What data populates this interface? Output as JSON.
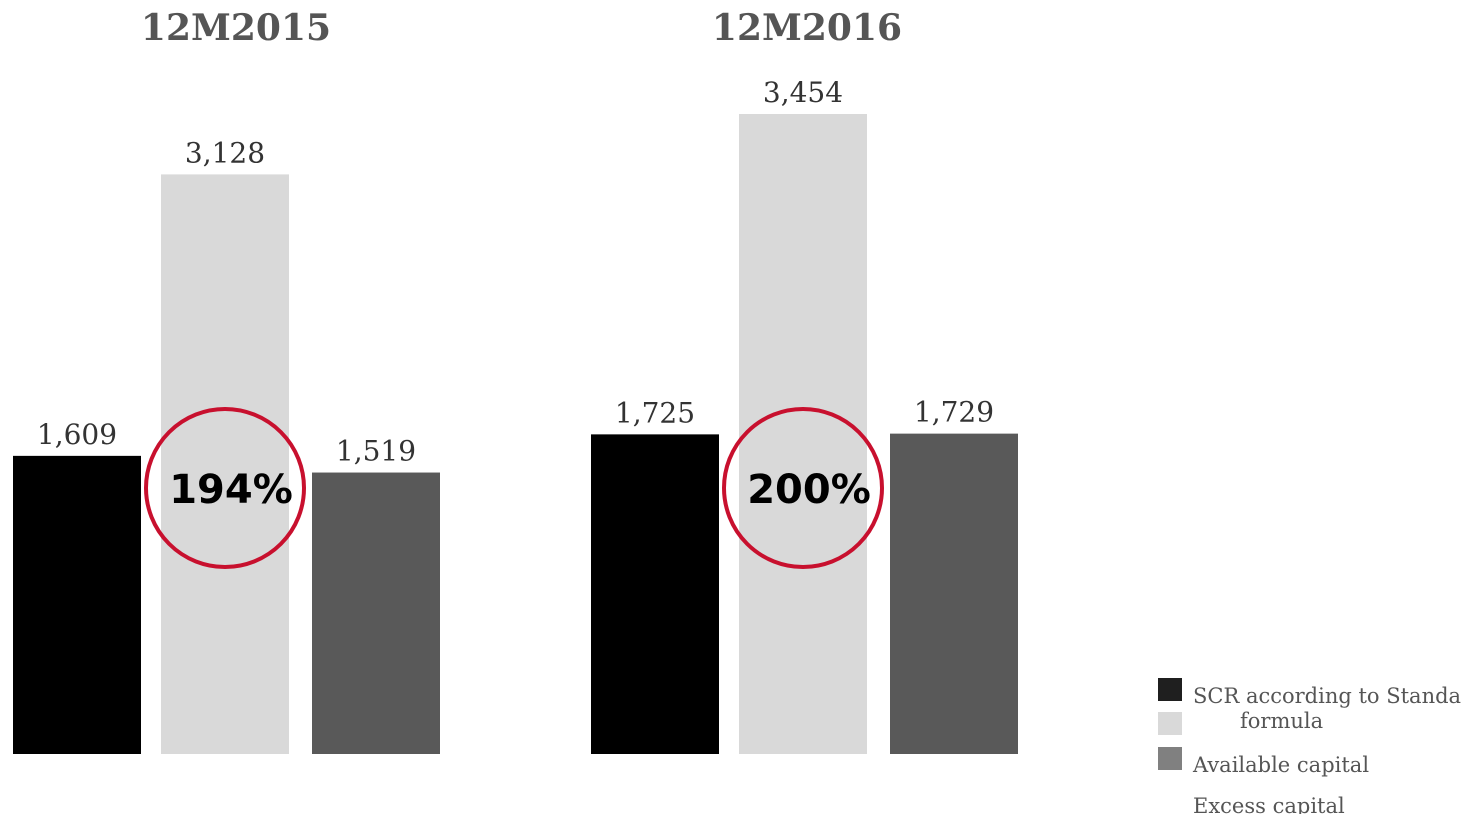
{
  "chart_data": {
    "type": "bar",
    "categories": [
      "12M2015",
      "12M2016"
    ],
    "series": [
      {
        "name": "SCR according to Standard formula",
        "values": [
          1609,
          1725
        ],
        "labels": [
          "1,609",
          "1,725"
        ],
        "color": "#000000"
      },
      {
        "name": "Available capital",
        "values": [
          3128,
          3454
        ],
        "labels": [
          "3,128",
          "3,454"
        ],
        "color": "#d9d9d9"
      },
      {
        "name": "Excess capital",
        "values": [
          1519,
          1729
        ],
        "labels": [
          "1,519",
          "1,729"
        ],
        "color": "#595959"
      }
    ],
    "annotations": [
      {
        "category": "12M2015",
        "text": "194%",
        "color": "#c8102e"
      },
      {
        "category": "12M2016",
        "text": "200%",
        "color": "#c8102e"
      }
    ],
    "ylim": [
      0,
      3454
    ],
    "grid": false,
    "legend": {
      "placement": "bottom-right",
      "entries": [
        {
          "label": "SCR according to Standard",
          "label_cont": "formula",
          "color": "#1f1f1f"
        },
        {
          "label": "",
          "color": "#d9d9d9"
        },
        {
          "label": "Available capital",
          "color": "#808080"
        },
        {
          "label": "Excess capital",
          "color": ""
        }
      ]
    }
  }
}
